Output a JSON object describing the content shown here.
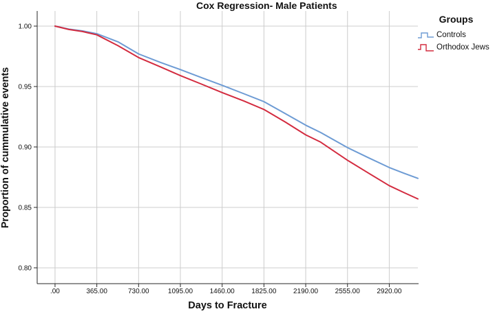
{
  "figure": {
    "title": "Cox Regression- Male Patients",
    "x_axis_title": "Days to Fracture",
    "y_axis_title": "Proportion of cummulative events",
    "legend": {
      "title": "Groups",
      "items": [
        {
          "label": "Controls",
          "icon": "step-line-icon",
          "color": "#6d9bd4"
        },
        {
          "label": "Orthodox Jews",
          "icon": "step-line-icon",
          "color": "#d32b3f"
        }
      ]
    }
  },
  "chart_data": {
    "type": "line",
    "title": "Cox Regression- Male Patients",
    "xlabel": "Days to Fracture",
    "ylabel": "Proportion of cummulative events",
    "x_ticks": [
      0,
      365,
      730,
      1095,
      1460,
      1825,
      2190,
      2555,
      2920
    ],
    "x_tick_labels": [
      ".00",
      "365.00",
      "730.00",
      "1095.00",
      "1460.00",
      "1825.00",
      "2190.00",
      "2555.00",
      "2920.00"
    ],
    "y_ticks": [
      0.8,
      0.85,
      0.9,
      0.95,
      1.0
    ],
    "y_tick_labels": [
      "0.80",
      "0.85",
      "0.90",
      "0.95",
      "1.00"
    ],
    "xlim": [
      -156,
      3170
    ],
    "ylim": [
      0.7869,
      1.0125
    ],
    "grid": true,
    "grid_color": "#cccccc",
    "axis_color": "#262626",
    "legend_position": "upper-right-outside",
    "legend_title": "Groups",
    "series": [
      {
        "name": "Controls",
        "color": "#6d9bd4",
        "points": [
          [
            0,
            1.0
          ],
          [
            120,
            0.9975
          ],
          [
            240,
            0.996
          ],
          [
            365,
            0.9937
          ],
          [
            550,
            0.987
          ],
          [
            730,
            0.977
          ],
          [
            920,
            0.97
          ],
          [
            1095,
            0.964
          ],
          [
            1280,
            0.9573
          ],
          [
            1460,
            0.951
          ],
          [
            1650,
            0.944
          ],
          [
            1825,
            0.9375
          ],
          [
            2010,
            0.9277
          ],
          [
            2190,
            0.918
          ],
          [
            2320,
            0.912
          ],
          [
            2555,
            0.8995
          ],
          [
            2740,
            0.891
          ],
          [
            2920,
            0.883
          ],
          [
            3050,
            0.8782
          ],
          [
            3170,
            0.874
          ]
        ]
      },
      {
        "name": "Orthodox Jews",
        "color": "#d32b3f",
        "points": [
          [
            0,
            1.0
          ],
          [
            120,
            0.9972
          ],
          [
            240,
            0.9955
          ],
          [
            365,
            0.9928
          ],
          [
            550,
            0.9838
          ],
          [
            730,
            0.974
          ],
          [
            920,
            0.9663
          ],
          [
            1095,
            0.959
          ],
          [
            1280,
            0.952
          ],
          [
            1460,
            0.945
          ],
          [
            1650,
            0.938
          ],
          [
            1825,
            0.931
          ],
          [
            2010,
            0.9207
          ],
          [
            2190,
            0.91
          ],
          [
            2320,
            0.904
          ],
          [
            2555,
            0.889
          ],
          [
            2740,
            0.8783
          ],
          [
            2920,
            0.868
          ],
          [
            3050,
            0.8622
          ],
          [
            3170,
            0.857
          ]
        ]
      }
    ]
  }
}
